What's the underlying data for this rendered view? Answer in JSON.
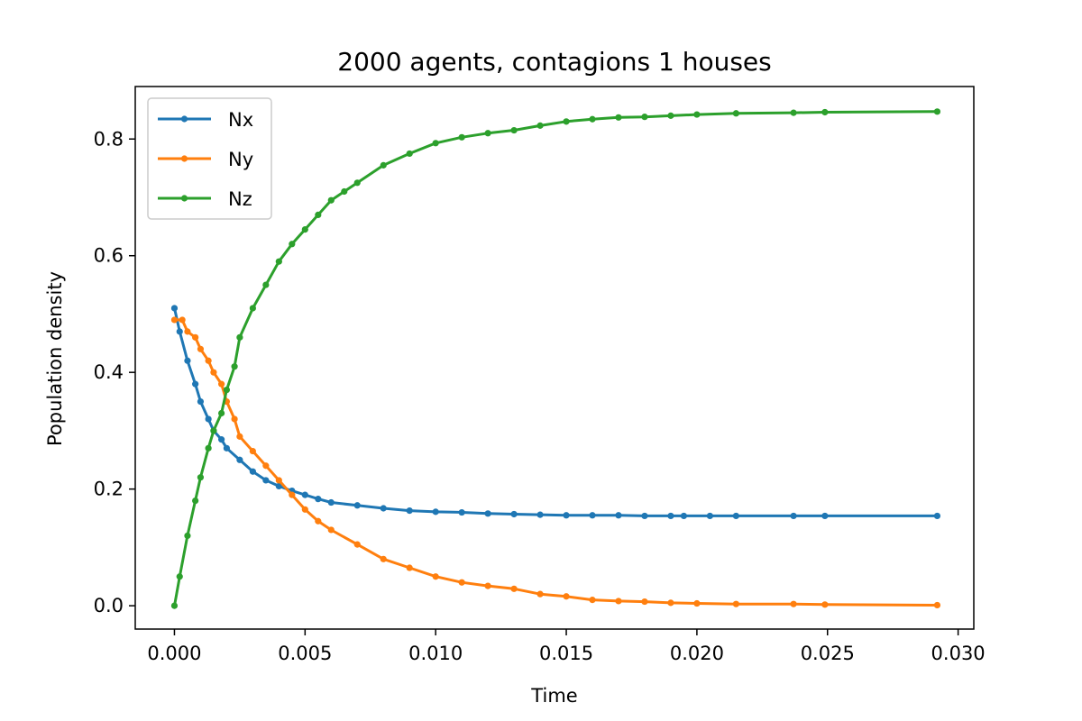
{
  "chart_data": {
    "type": "line",
    "title": "2000 agents, contagions 1 houses",
    "xlabel": "Time",
    "ylabel": "Population density",
    "xlim": [
      -0.0015,
      0.0306
    ],
    "ylim": [
      -0.04,
      0.89
    ],
    "xticks": [
      0.0,
      0.005,
      0.01,
      0.015,
      0.02,
      0.025,
      0.03
    ],
    "xtick_labels": [
      "0.000",
      "0.005",
      "0.010",
      "0.015",
      "0.020",
      "0.025",
      "0.030"
    ],
    "yticks": [
      0.0,
      0.2,
      0.4,
      0.6,
      0.8
    ],
    "ytick_labels": [
      "0.0",
      "0.2",
      "0.4",
      "0.6",
      "0.8"
    ],
    "grid": false,
    "legend_position": "upper-left",
    "series": [
      {
        "name": "Nx",
        "color": "#1f77b4",
        "x": [
          0.0,
          0.0002,
          0.0005,
          0.0008,
          0.001,
          0.0013,
          0.0015,
          0.0018,
          0.002,
          0.0025,
          0.003,
          0.0035,
          0.004,
          0.0045,
          0.005,
          0.0055,
          0.006,
          0.007,
          0.008,
          0.009,
          0.01,
          0.011,
          0.012,
          0.013,
          0.014,
          0.015,
          0.016,
          0.017,
          0.018,
          0.019,
          0.0195,
          0.0205,
          0.0215,
          0.0237,
          0.0249,
          0.0292
        ],
        "y": [
          0.51,
          0.47,
          0.42,
          0.38,
          0.35,
          0.32,
          0.3,
          0.285,
          0.27,
          0.25,
          0.23,
          0.215,
          0.205,
          0.197,
          0.19,
          0.183,
          0.177,
          0.172,
          0.167,
          0.163,
          0.161,
          0.16,
          0.158,
          0.157,
          0.156,
          0.155,
          0.155,
          0.155,
          0.154,
          0.154,
          0.154,
          0.154,
          0.154,
          0.154,
          0.154,
          0.154
        ]
      },
      {
        "name": "Ny",
        "color": "#ff7f0e",
        "x": [
          0.0,
          0.0003,
          0.0005,
          0.0008,
          0.001,
          0.0013,
          0.0015,
          0.0018,
          0.002,
          0.0023,
          0.0025,
          0.003,
          0.0035,
          0.004,
          0.0045,
          0.005,
          0.0055,
          0.006,
          0.007,
          0.008,
          0.009,
          0.01,
          0.011,
          0.012,
          0.013,
          0.014,
          0.015,
          0.016,
          0.017,
          0.018,
          0.019,
          0.02,
          0.0215,
          0.0237,
          0.0249,
          0.0292
        ],
        "y": [
          0.49,
          0.49,
          0.47,
          0.46,
          0.44,
          0.42,
          0.4,
          0.38,
          0.35,
          0.32,
          0.29,
          0.265,
          0.24,
          0.215,
          0.19,
          0.165,
          0.145,
          0.13,
          0.105,
          0.08,
          0.065,
          0.05,
          0.04,
          0.034,
          0.029,
          0.02,
          0.016,
          0.01,
          0.008,
          0.007,
          0.005,
          0.004,
          0.003,
          0.003,
          0.002,
          0.001
        ]
      },
      {
        "name": "Nz",
        "color": "#2ca02c",
        "x": [
          0.0,
          0.0002,
          0.0005,
          0.0008,
          0.001,
          0.0013,
          0.0015,
          0.0018,
          0.002,
          0.0023,
          0.0025,
          0.003,
          0.0035,
          0.004,
          0.0045,
          0.005,
          0.0055,
          0.006,
          0.0065,
          0.007,
          0.008,
          0.009,
          0.01,
          0.011,
          0.012,
          0.013,
          0.014,
          0.015,
          0.016,
          0.017,
          0.018,
          0.019,
          0.02,
          0.0215,
          0.0237,
          0.0249,
          0.0292
        ],
        "y": [
          0.0,
          0.05,
          0.12,
          0.18,
          0.22,
          0.27,
          0.3,
          0.33,
          0.37,
          0.41,
          0.46,
          0.51,
          0.55,
          0.59,
          0.62,
          0.645,
          0.67,
          0.695,
          0.71,
          0.725,
          0.755,
          0.775,
          0.793,
          0.803,
          0.81,
          0.815,
          0.823,
          0.83,
          0.834,
          0.837,
          0.838,
          0.84,
          0.842,
          0.844,
          0.845,
          0.846,
          0.847
        ]
      }
    ]
  }
}
